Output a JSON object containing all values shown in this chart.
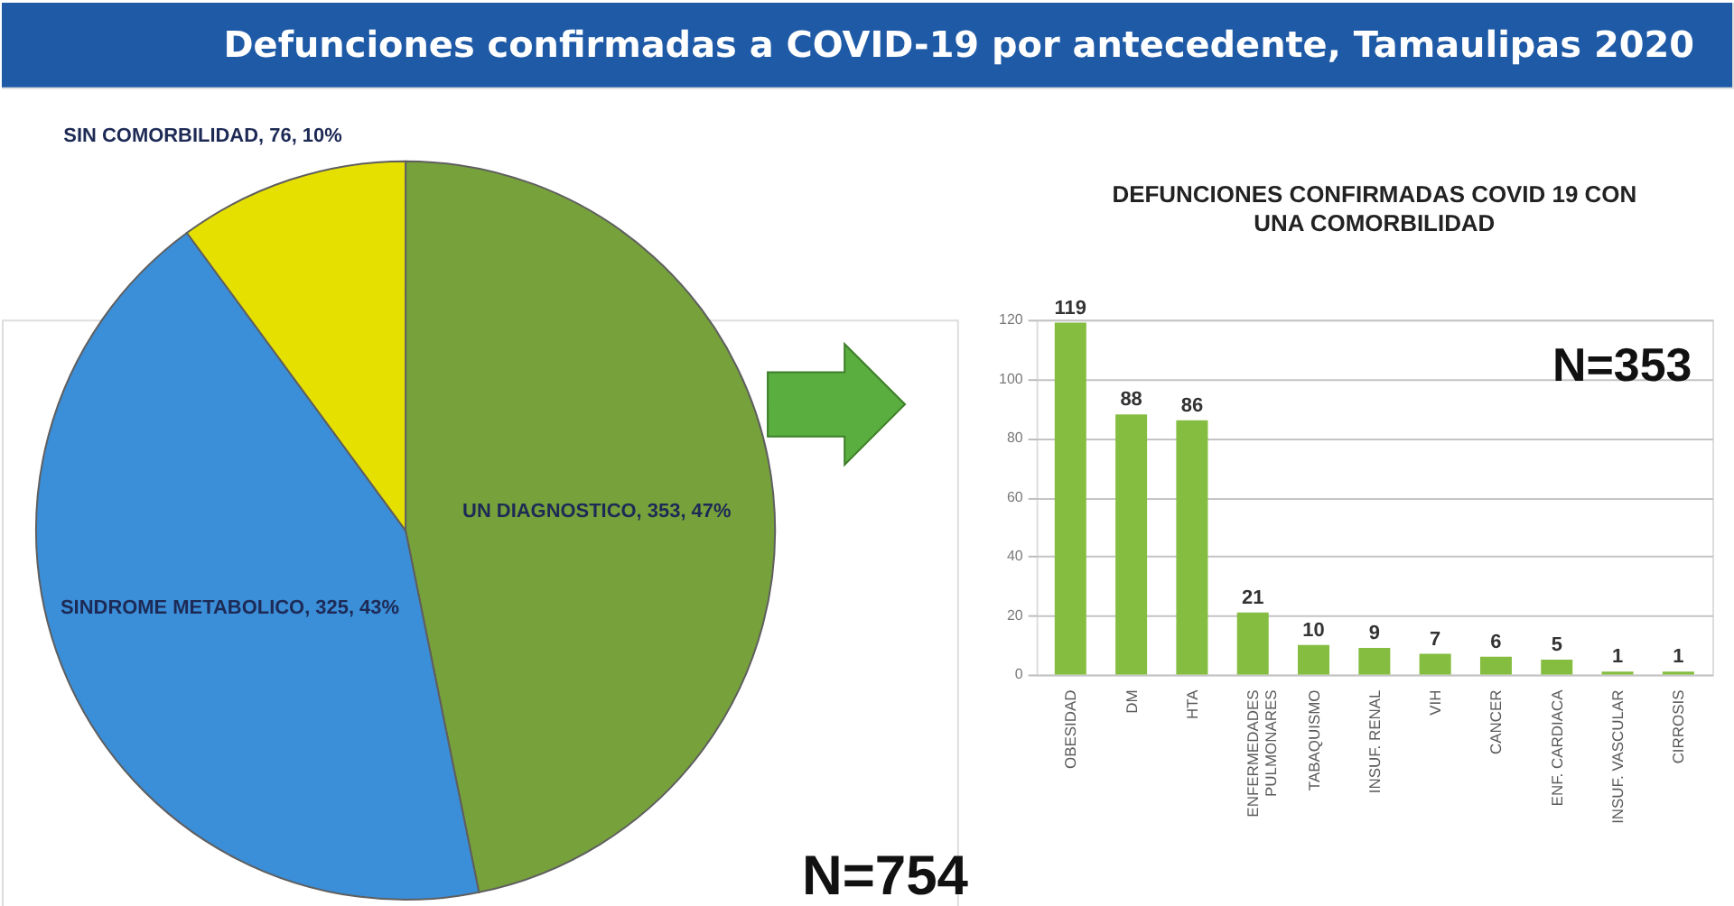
{
  "chart_data": [
    {
      "type": "pie",
      "title": "Defunciones confirmadas a COVID-19 por antecedente, Tamaulipas 2020",
      "categories": [
        "UN DIAGNOSTICO",
        "SINDROME METABOLICO",
        "SIN COMORBILIDAD"
      ],
      "values": [
        353,
        325,
        76
      ],
      "colors": [
        "#77a23b",
        "#3b8ed8",
        "#e6e000"
      ],
      "value_labels": [
        "353, 47%",
        "325, 43%",
        "76, 10%"
      ],
      "annotations": [
        "N=754"
      ]
    },
    {
      "type": "bar",
      "title": "DEFUNCIONES CONFIRMADAS COVID 19 CON UNA COMORBILIDAD",
      "categories": [
        "OBESIDAD",
        "DM",
        "HTA",
        "ENFERMEDADES PULMONARES",
        "TABAQUISMO",
        "INSUF. RENAL",
        "VIH",
        "CANCER",
        "ENF. CARDIACA",
        "INSUF. VASCULAR",
        "CIRROSIS"
      ],
      "values": [
        119,
        88,
        86,
        21,
        10,
        9,
        7,
        6,
        5,
        1,
        1
      ],
      "color": "#84bd3f",
      "ylim": [
        0,
        120
      ],
      "yticks": [
        0,
        20,
        40,
        60,
        80,
        100,
        120
      ],
      "grid": "y",
      "data_labels": true,
      "annotations": [
        "N=353"
      ]
    }
  ]
}
